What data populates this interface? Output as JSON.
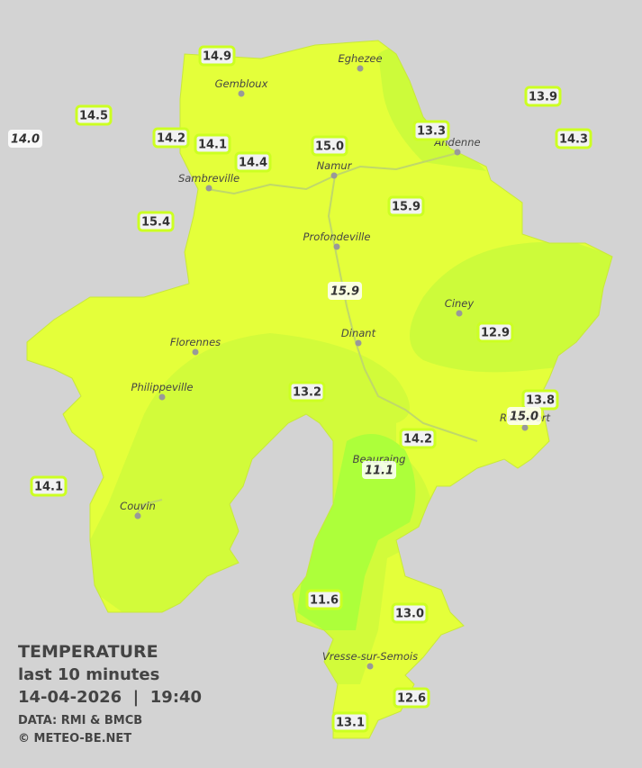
{
  "legend": {
    "title": "TEMPERATURE",
    "subtitle": "last 10 minutes",
    "timestamp": "14-04-2026  |  19:40",
    "source": "DATA: RMI & BMCB",
    "copyright": "© METEO-BE.NET"
  },
  "cities": [
    "Eghezee",
    "Gembloux",
    "Andenne",
    "Namur",
    "Sambreville",
    "Profondeville",
    "Ciney",
    "Dinant",
    "Florennes",
    "Philippeville",
    "Rochefort",
    "Beauraing",
    "Couvin",
    "Vresse-sur-Semois"
  ],
  "stations": [
    "14.9",
    "14.5",
    "14.0",
    "14.2",
    "14.1",
    "14.4",
    "15.0",
    "13.3",
    "13.9",
    "14.3",
    "15.4",
    "15.9",
    "15.9",
    "12.9",
    "13.2",
    "13.8",
    "15.0",
    "14.2",
    "11.1",
    "14.1",
    "11.6",
    "13.0",
    "12.6",
    "13.1"
  ]
}
